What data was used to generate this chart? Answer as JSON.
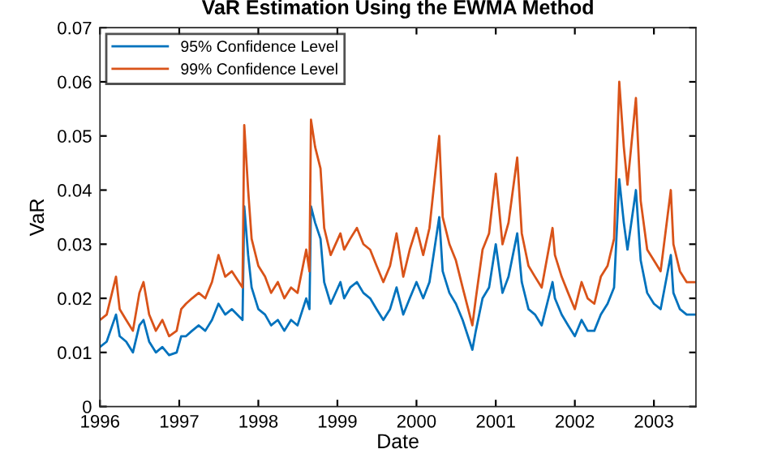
{
  "chart_data": {
    "type": "line",
    "title": "VaR Estimation Using the EWMA Method",
    "xlabel": "Date",
    "ylabel": "VaR",
    "x": [
      "1996-01-01",
      "1996-02-01",
      "1996-03-15",
      "1996-04-01",
      "1996-05-01",
      "1996-06-01",
      "1996-07-01",
      "1996-07-20",
      "1996-08-15",
      "1996-09-15",
      "1996-10-15",
      "1996-11-15",
      "1996-12-20",
      "1997-01-10",
      "1997-02-01",
      "1997-03-01",
      "1997-04-01",
      "1997-05-01",
      "1997-06-01",
      "1997-07-01",
      "1997-08-01",
      "1997-09-01",
      "1997-10-20",
      "1997-10-28",
      "1997-11-15",
      "1997-12-01",
      "1998-01-01",
      "1998-02-01",
      "1998-03-01",
      "1998-04-01",
      "1998-05-01",
      "1998-06-01",
      "1998-07-01",
      "1998-08-10",
      "1998-08-25",
      "1998-09-01",
      "1998-09-20",
      "1998-10-15",
      "1998-11-01",
      "1998-12-01",
      "1999-01-15",
      "1999-02-01",
      "1999-03-01",
      "1999-04-01",
      "1999-05-01",
      "1999-06-01",
      "1999-07-01",
      "1999-08-01",
      "1999-09-01",
      "1999-10-01",
      "1999-11-01",
      "1999-12-01",
      "2000-01-01",
      "2000-02-01",
      "2000-03-01",
      "2000-04-15",
      "2000-05-01",
      "2000-06-01",
      "2000-07-01",
      "2000-08-01",
      "2000-09-15",
      "2000-10-01",
      "2000-11-01",
      "2000-12-01",
      "2001-01-01",
      "2001-02-01",
      "2001-03-01",
      "2001-04-10",
      "2001-05-01",
      "2001-06-01",
      "2001-07-01",
      "2001-08-01",
      "2001-09-20",
      "2001-10-01",
      "2001-11-01",
      "2001-12-01",
      "2002-01-01",
      "2002-02-01",
      "2002-03-01",
      "2002-04-01",
      "2002-05-01",
      "2002-06-01",
      "2002-07-01",
      "2002-07-25",
      "2002-08-15",
      "2002-09-01",
      "2002-10-10",
      "2002-11-01",
      "2002-12-01",
      "2003-01-01",
      "2003-02-01",
      "2003-03-20",
      "2003-04-01",
      "2003-05-01",
      "2003-06-01",
      "2003-07-10"
    ],
    "series": [
      {
        "name": "95% Confidence Level",
        "color": "#0072bd",
        "values": [
          0.011,
          0.012,
          0.017,
          0.013,
          0.012,
          0.01,
          0.015,
          0.016,
          0.012,
          0.01,
          0.011,
          0.0095,
          0.01,
          0.013,
          0.013,
          0.014,
          0.015,
          0.014,
          0.016,
          0.019,
          0.017,
          0.018,
          0.016,
          0.037,
          0.028,
          0.022,
          0.018,
          0.017,
          0.015,
          0.016,
          0.014,
          0.016,
          0.015,
          0.02,
          0.018,
          0.037,
          0.034,
          0.031,
          0.023,
          0.019,
          0.023,
          0.02,
          0.022,
          0.023,
          0.021,
          0.02,
          0.018,
          0.016,
          0.018,
          0.022,
          0.017,
          0.02,
          0.023,
          0.02,
          0.023,
          0.035,
          0.025,
          0.021,
          0.019,
          0.016,
          0.0105,
          0.014,
          0.02,
          0.022,
          0.03,
          0.021,
          0.024,
          0.032,
          0.023,
          0.018,
          0.017,
          0.015,
          0.023,
          0.02,
          0.017,
          0.015,
          0.013,
          0.016,
          0.014,
          0.014,
          0.017,
          0.019,
          0.022,
          0.042,
          0.034,
          0.029,
          0.04,
          0.027,
          0.021,
          0.019,
          0.018,
          0.028,
          0.021,
          0.018,
          0.017,
          0.017
        ]
      },
      {
        "name": "99% Confidence Level",
        "color": "#d95319",
        "values": [
          0.016,
          0.017,
          0.024,
          0.018,
          0.016,
          0.014,
          0.021,
          0.023,
          0.017,
          0.014,
          0.016,
          0.013,
          0.014,
          0.018,
          0.019,
          0.02,
          0.021,
          0.02,
          0.023,
          0.028,
          0.024,
          0.025,
          0.022,
          0.052,
          0.04,
          0.031,
          0.026,
          0.024,
          0.021,
          0.023,
          0.02,
          0.022,
          0.021,
          0.029,
          0.025,
          0.053,
          0.048,
          0.044,
          0.033,
          0.028,
          0.032,
          0.029,
          0.031,
          0.033,
          0.03,
          0.029,
          0.026,
          0.023,
          0.026,
          0.032,
          0.024,
          0.029,
          0.033,
          0.028,
          0.033,
          0.05,
          0.035,
          0.03,
          0.027,
          0.022,
          0.015,
          0.02,
          0.029,
          0.032,
          0.043,
          0.03,
          0.034,
          0.046,
          0.032,
          0.026,
          0.024,
          0.022,
          0.033,
          0.028,
          0.024,
          0.021,
          0.018,
          0.023,
          0.02,
          0.019,
          0.024,
          0.026,
          0.031,
          0.06,
          0.048,
          0.041,
          0.057,
          0.038,
          0.029,
          0.027,
          0.025,
          0.04,
          0.03,
          0.025,
          0.023,
          0.023
        ]
      }
    ],
    "xlim": [
      "1996-01-01",
      "2003-07-14"
    ],
    "xticks": [
      {
        "value": "1996-01-01",
        "label": "1996"
      },
      {
        "value": "1997-01-01",
        "label": "1997"
      },
      {
        "value": "1998-01-01",
        "label": "1998"
      },
      {
        "value": "1999-01-01",
        "label": "1999"
      },
      {
        "value": "2000-01-01",
        "label": "2000"
      },
      {
        "value": "2001-01-01",
        "label": "2001"
      },
      {
        "value": "2002-01-01",
        "label": "2002"
      },
      {
        "value": "2003-01-01",
        "label": "2003"
      }
    ],
    "ylim": [
      0,
      0.07
    ],
    "yticks": [
      0,
      0.01,
      0.02,
      0.03,
      0.04,
      0.05,
      0.06,
      0.07
    ],
    "legend": "top left",
    "line_style": "solid"
  }
}
